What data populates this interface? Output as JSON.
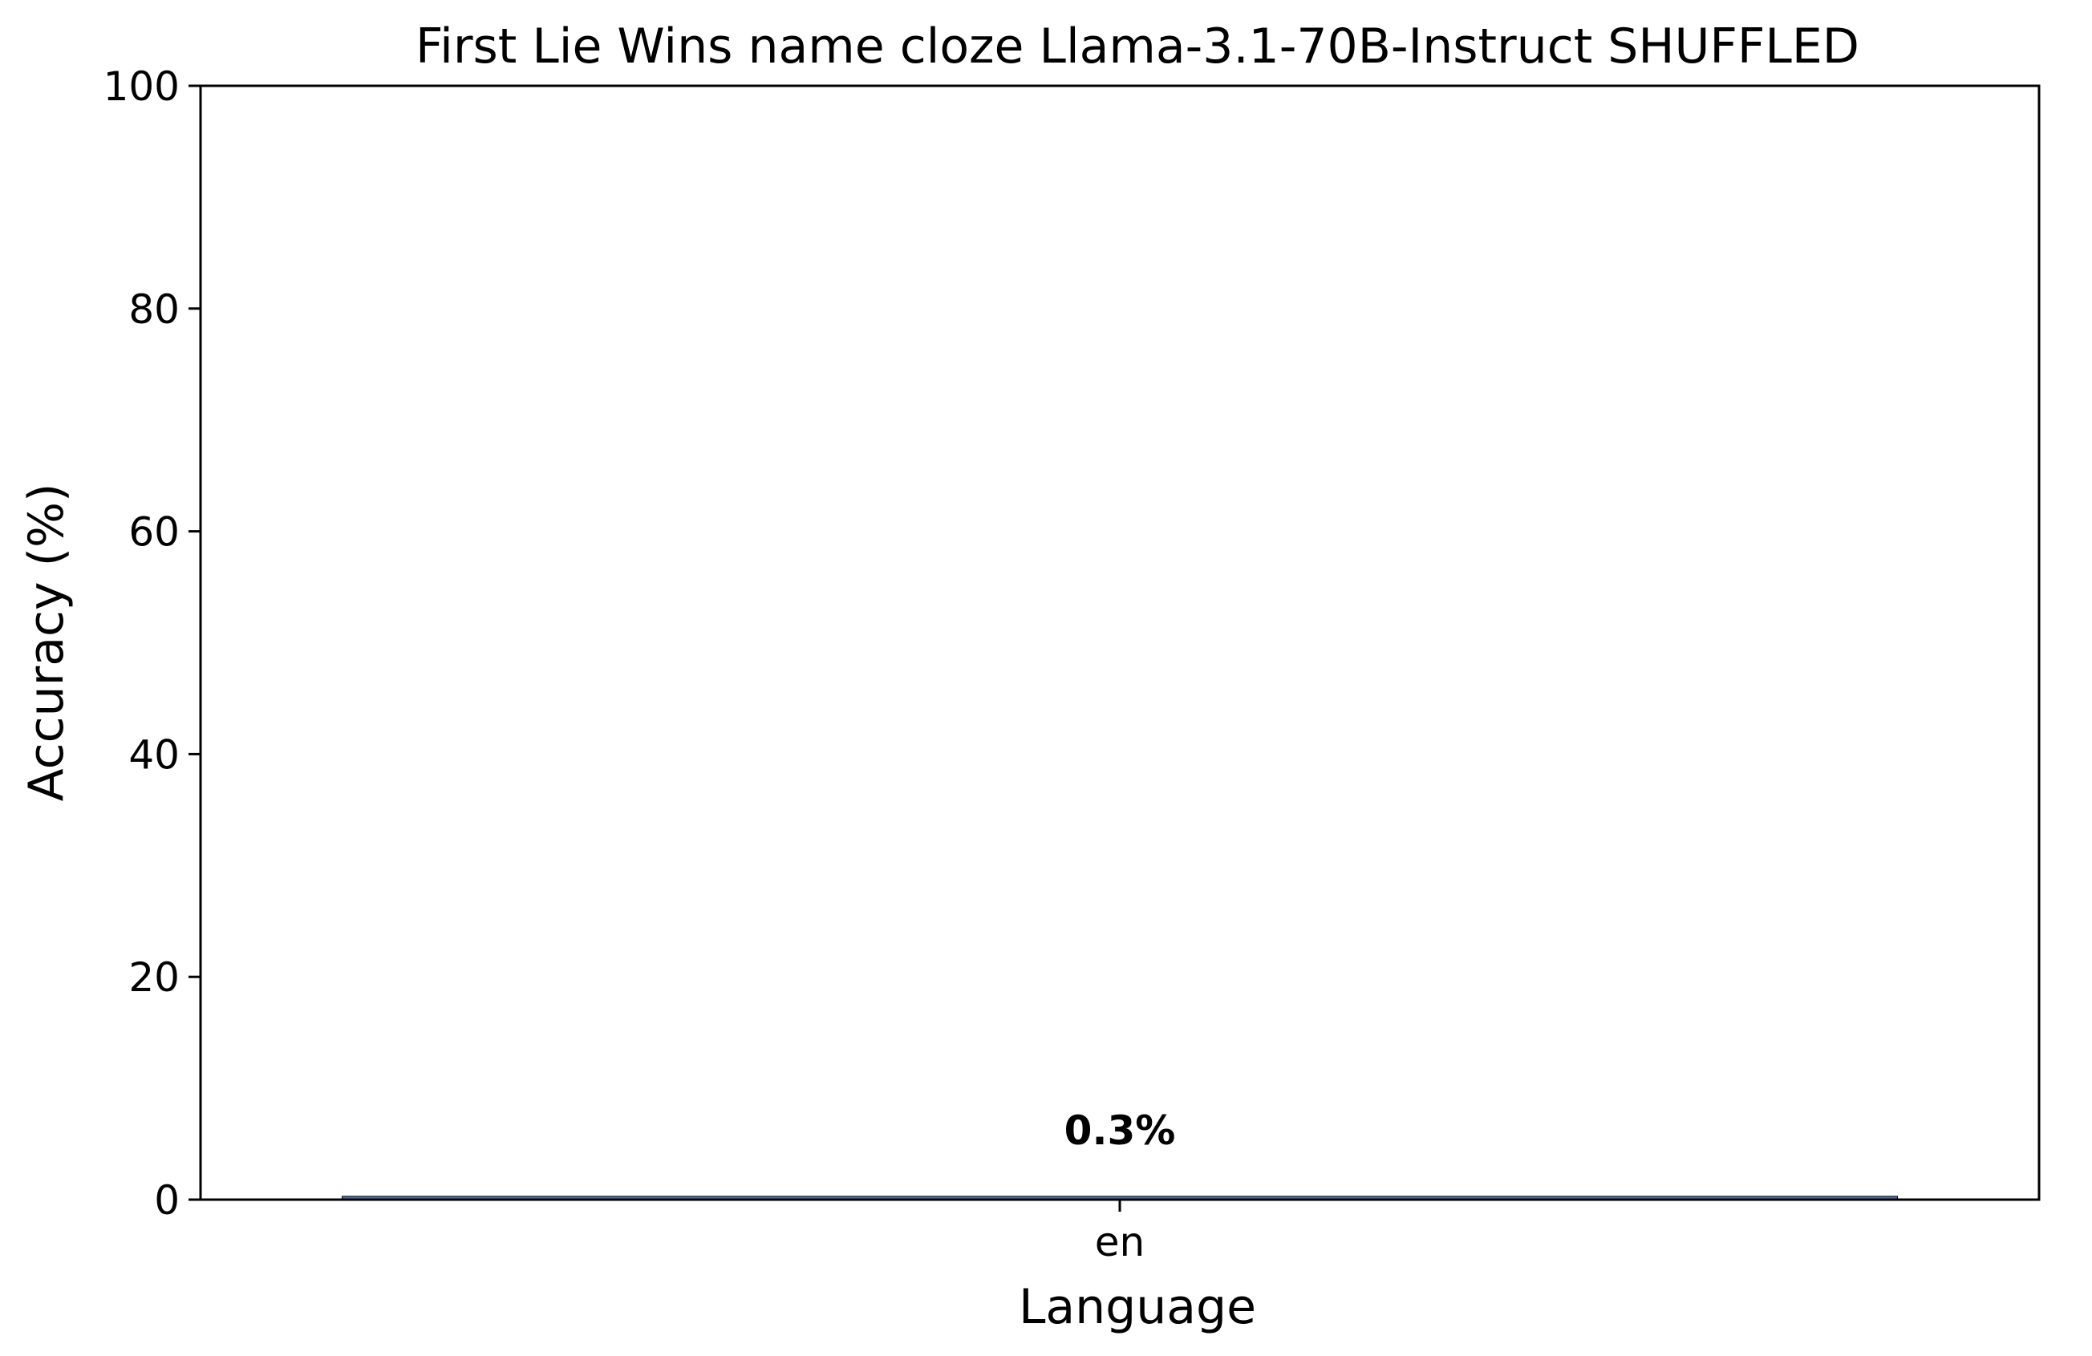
{
  "chart_data": {
    "type": "bar",
    "title": "First Lie Wins name cloze Llama-3.1-70B-Instruct SHUFFLED",
    "xlabel": "Language",
    "ylabel": "Accuracy (%)",
    "categories": [
      "en"
    ],
    "values": [
      0.3
    ],
    "bar_labels": [
      "0.3%"
    ],
    "ylim": [
      0,
      100
    ],
    "yticks": [
      0,
      20,
      40,
      60,
      80,
      100
    ],
    "ytick_labels": [
      "0",
      "20",
      "40",
      "60",
      "80",
      "100"
    ],
    "grid": false,
    "colors": {
      "bar": "#4c72b0",
      "axes": "#000000",
      "text": "#000000"
    }
  }
}
